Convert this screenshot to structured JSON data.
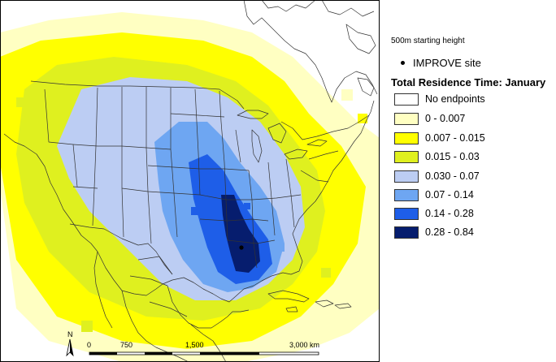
{
  "map": {
    "scale_bar": {
      "labels": [
        "0",
        "750",
        "1,500",
        "3,000 km"
      ]
    },
    "north_label": "N",
    "site_marker": "IMPROVE site"
  },
  "legend": {
    "height_label": "500m starting height",
    "site_label": "IMPROVE site",
    "title": "Total Residence Time: January",
    "classes": [
      {
        "label": "No endpoints",
        "color": "#ffffff"
      },
      {
        "label": "0 - 0.007",
        "color": "#ffffc2"
      },
      {
        "label": "0.007 - 0.015",
        "color": "#ffff00"
      },
      {
        "label": "0.015 - 0.03",
        "color": "#dff01f"
      },
      {
        "label": "0.030 - 0.07",
        "color": "#bccdf3"
      },
      {
        "label": "0.07 - 0.14",
        "color": "#6ea6f2"
      },
      {
        "label": "0.14 - 0.28",
        "color": "#1e5ee8"
      },
      {
        "label": "0.28 - 0.84",
        "color": "#061d6e"
      }
    ]
  }
}
